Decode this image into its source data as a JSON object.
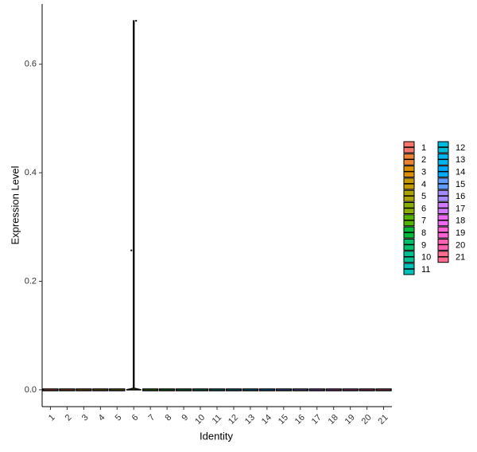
{
  "chart_data": {
    "type": "violin",
    "x_label": "Identity",
    "y_label": "Expression Level",
    "categories": [
      "1",
      "2",
      "3",
      "4",
      "5",
      "6",
      "7",
      "8",
      "9",
      "10",
      "11",
      "12",
      "13",
      "14",
      "15",
      "16",
      "17",
      "18",
      "19",
      "20",
      "21"
    ],
    "values": [
      0,
      0,
      0,
      0,
      0,
      0.68,
      0,
      0,
      0,
      0,
      0,
      0,
      0,
      0,
      0,
      0,
      0,
      0,
      0,
      0,
      0
    ],
    "points": [
      [],
      [],
      [],
      [],
      [],
      [
        0.68,
        0.257
      ],
      [],
      [],
      [],
      [],
      [],
      [],
      [],
      [],
      [],
      [],
      [],
      [],
      [],
      [],
      []
    ],
    "colors": [
      "#F8766D",
      "#EB8335",
      "#DA8F00",
      "#C49A00",
      "#A9A400",
      "#86AC00",
      "#53B400",
      "#00BA38",
      "#00BE6C",
      "#00C094",
      "#00C0B8",
      "#00BCD8",
      "#00B4EF",
      "#00A9FF",
      "#619CFF",
      "#A58AFF",
      "#D078FF",
      "#EC69EF",
      "#FA62D4",
      "#FF62B1",
      "#FF6C90"
    ],
    "ylim": [
      -0.031,
      0.711
    ],
    "yticks": [
      {
        "value": 0,
        "label": "0.0"
      },
      0.2,
      0.4,
      0.6
    ],
    "grid": false,
    "legend": "right"
  }
}
